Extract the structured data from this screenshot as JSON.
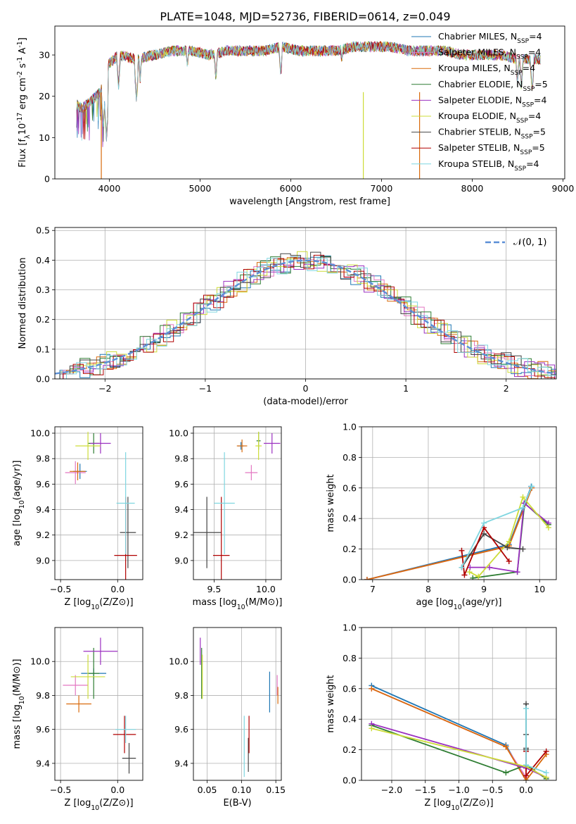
{
  "title": "PLATE=1048, MJD=52736, FIBERID=0614, z=0.049",
  "colors": {
    "chabrier_miles": "#1f77b4",
    "salpeter_miles": "#e377c2",
    "kroupa_miles": "#d96a0b",
    "chabrier_elodie": "#2e7d32",
    "salpeter_elodie": "#9b30c0",
    "kroupa_elodie": "#cddc39",
    "chabrier_stelib": "#444444",
    "salpeter_stelib": "#b00000",
    "kroupa_stelib": "#7fd6e0",
    "normal": "#5b8fd6"
  },
  "chart_data": [
    {
      "id": "spectrum",
      "type": "line",
      "xlabel": "wavelength [Angstrom, rest frame]",
      "ylabel": "Flux [f_λ10^{-17} erg cm^{-2} s^{-1} A^{-1}]",
      "xlim": [
        3400,
        9020
      ],
      "ylim": [
        0,
        37
      ],
      "xticks": [
        4000,
        5000,
        6000,
        7000,
        8000,
        9000
      ],
      "yticks": [
        0,
        10,
        20,
        30
      ],
      "legend_position": "right",
      "series": [
        {
          "name": "Chabrier MILES, N_SSP=4",
          "color": "chabrier_miles"
        },
        {
          "name": "Salpeter MILES, N_SSP=4",
          "color": "salpeter_miles"
        },
        {
          "name": "Kroupa MILES, N_SSP=4",
          "color": "kroupa_miles"
        },
        {
          "name": "Chabrier ELODIE, N_SSP=5",
          "color": "chabrier_elodie"
        },
        {
          "name": "Salpeter ELODIE, N_SSP=4",
          "color": "salpeter_elodie"
        },
        {
          "name": "Kroupa ELODIE, N_SSP=4",
          "color": "kroupa_elodie"
        },
        {
          "name": "Chabrier STELIB, N_SSP=5",
          "color": "chabrier_stelib"
        },
        {
          "name": "Salpeter STELIB, N_SSP=5",
          "color": "salpeter_stelib"
        },
        {
          "name": "Kroupa STELIB, N_SSP=4",
          "color": "kroupa_stelib"
        }
      ],
      "continuum": [
        [
          3640,
          18
        ],
        [
          3700,
          17
        ],
        [
          3800,
          19
        ],
        [
          3900,
          21
        ],
        [
          3950,
          24
        ],
        [
          4000,
          28
        ],
        [
          4100,
          30
        ],
        [
          4300,
          29
        ],
        [
          4500,
          30
        ],
        [
          4700,
          31
        ],
        [
          4900,
          31
        ],
        [
          5100,
          30
        ],
        [
          5300,
          31
        ],
        [
          5500,
          31
        ],
        [
          5700,
          31
        ],
        [
          5900,
          32
        ],
        [
          6100,
          31
        ],
        [
          6300,
          31
        ],
        [
          6500,
          31
        ],
        [
          6700,
          32
        ],
        [
          6900,
          32
        ],
        [
          7100,
          32
        ],
        [
          7300,
          31
        ],
        [
          7500,
          31
        ],
        [
          7700,
          31
        ],
        [
          7900,
          30
        ],
        [
          8100,
          30
        ],
        [
          8300,
          30
        ],
        [
          8500,
          29
        ],
        [
          8700,
          29
        ]
      ],
      "absorption_lines": [
        [
          3934,
          13
        ],
        [
          3969,
          10
        ],
        [
          4101,
          22
        ],
        [
          4300,
          19
        ],
        [
          4340,
          24
        ],
        [
          4861,
          27
        ],
        [
          5175,
          24
        ],
        [
          5890,
          25
        ],
        [
          6563,
          28
        ],
        [
          8498,
          23
        ],
        [
          8542,
          22
        ],
        [
          8662,
          21
        ]
      ]
    },
    {
      "id": "residuals",
      "type": "line",
      "xlabel": "(data-model)/error",
      "ylabel": "Normed distribution",
      "xlim": [
        -2.5,
        2.5
      ],
      "ylim": [
        0,
        0.51
      ],
      "xticks": [
        -2,
        -1,
        0,
        1,
        2
      ],
      "yticks": [
        0.0,
        0.1,
        0.2,
        0.3,
        0.4,
        0.5
      ],
      "grid": true,
      "legend_position": "top-right",
      "normal_label": "N(0,1)"
    },
    {
      "id": "age_vs_Z",
      "type": "scatter",
      "xlabel": "Z [log10(Z/Z⊙)]",
      "ylabel": "age  [log10(age/yr)]",
      "xlim": [
        -0.55,
        0.22
      ],
      "ylim": [
        8.85,
        10.05
      ],
      "xticks": [
        -0.5,
        0.0
      ],
      "yticks": [
        9.0,
        9.2,
        9.4,
        9.6,
        9.8,
        10.0
      ],
      "grid": true,
      "points": [
        {
          "c": "chabrier_miles",
          "x": -0.33,
          "y": 9.7,
          "xe": 0.06,
          "ye": 0.06
        },
        {
          "c": "salpeter_miles",
          "x": -0.37,
          "y": 9.69,
          "xe": 0.09,
          "ye": 0.09
        },
        {
          "c": "kroupa_miles",
          "x": -0.35,
          "y": 9.7,
          "xe": 0.07,
          "ye": 0.07
        },
        {
          "c": "chabrier_elodie",
          "x": -0.21,
          "y": 9.92,
          "xe": 0.05,
          "ye": 0.08
        },
        {
          "c": "salpeter_elodie",
          "x": -0.15,
          "y": 9.92,
          "xe": 0.09,
          "ye": 0.08
        },
        {
          "c": "kroupa_elodie",
          "x": -0.26,
          "y": 9.9,
          "xe": 0.11,
          "ye": 0.11
        },
        {
          "c": "chabrier_stelib",
          "x": 0.09,
          "y": 9.22,
          "xe": 0.07,
          "ye": 0.28
        },
        {
          "c": "salpeter_stelib",
          "x": 0.07,
          "y": 9.04,
          "xe": 0.1,
          "ye": 0.46
        },
        {
          "c": "kroupa_stelib",
          "x": 0.07,
          "y": 9.45,
          "xe": 0.08,
          "ye": 0.4
        }
      ]
    },
    {
      "id": "age_vs_mass",
      "type": "scatter",
      "xlabel": "mass [log10(M/M⊙)]",
      "ylabel": "",
      "xlim": [
        9.3,
        10.15
      ],
      "ylim": [
        8.85,
        10.05
      ],
      "xticks": [
        9.5,
        10.0
      ],
      "yticks": [
        9.0,
        9.2,
        9.4,
        9.6,
        9.8,
        10.0
      ],
      "grid": true,
      "points": [
        {
          "c": "chabrier_miles",
          "x": 9.76,
          "y": 9.9,
          "xe": 0.03,
          "ye": 0.03
        },
        {
          "c": "salpeter_miles",
          "x": 9.86,
          "y": 9.69,
          "xe": 0.06,
          "ye": 0.06
        },
        {
          "c": "kroupa_miles",
          "x": 9.77,
          "y": 9.9,
          "xe": 0.05,
          "ye": 0.05
        },
        {
          "c": "chabrier_elodie",
          "x": 9.93,
          "y": 9.94,
          "xe": 0.02,
          "ye": 0.07
        },
        {
          "c": "salpeter_elodie",
          "x": 10.06,
          "y": 9.92,
          "xe": 0.08,
          "ye": 0.08
        },
        {
          "c": "kroupa_elodie",
          "x": 9.93,
          "y": 9.9,
          "xe": 0.03,
          "ye": 0.11
        },
        {
          "c": "chabrier_stelib",
          "x": 9.43,
          "y": 9.22,
          "xe": 0.14,
          "ye": 0.28
        },
        {
          "c": "salpeter_stelib",
          "x": 9.57,
          "y": 9.04,
          "xe": 0.08,
          "ye": 0.46
        },
        {
          "c": "kroupa_stelib",
          "x": 9.6,
          "y": 9.45,
          "xe": 0.1,
          "ye": 0.4
        }
      ]
    },
    {
      "id": "mass_weight_vs_age",
      "type": "line",
      "xlabel": "age  [log10(age/yr)]",
      "ylabel": "mass weight",
      "xlim": [
        6.8,
        10.3
      ],
      "ylim": [
        0.0,
        1.0
      ],
      "xticks": [
        7,
        8,
        9,
        10
      ],
      "yticks": [
        0.0,
        0.2,
        0.4,
        0.6,
        0.8,
        1.0
      ],
      "grid": true,
      "series": [
        {
          "c": "chabrier_miles",
          "x": [
            6.9,
            9.45,
            9.85
          ],
          "y": [
            0.0,
            0.23,
            0.61
          ]
        },
        {
          "c": "salpeter_miles",
          "x": [
            6.9,
            9.45,
            9.86
          ],
          "y": [
            0.0,
            0.22,
            0.6
          ]
        },
        {
          "c": "kroupa_miles",
          "x": [
            6.9,
            9.45,
            9.86
          ],
          "y": [
            0.0,
            0.22,
            0.6
          ]
        },
        {
          "c": "chabrier_elodie",
          "x": [
            8.8,
            9.6,
            9.73,
            10.16
          ],
          "y": [
            0.01,
            0.05,
            0.5,
            0.36
          ]
        },
        {
          "c": "salpeter_elodie",
          "x": [
            8.75,
            9.1,
            9.6,
            9.72,
            10.16
          ],
          "y": [
            0.08,
            0.08,
            0.05,
            0.5,
            0.37
          ]
        },
        {
          "c": "kroupa_elodie",
          "x": [
            8.74,
            8.9,
            9.45,
            9.7,
            10.16
          ],
          "y": [
            0.05,
            0.02,
            0.25,
            0.54,
            0.34
          ]
        },
        {
          "c": "chabrier_stelib",
          "x": [
            8.6,
            9.0,
            9.42,
            9.7
          ],
          "y": [
            0.08,
            0.3,
            0.21,
            0.2
          ]
        },
        {
          "c": "salpeter_stelib",
          "x": [
            8.6,
            8.65,
            9.0,
            9.45
          ],
          "y": [
            0.19,
            0.03,
            0.34,
            0.12
          ]
        },
        {
          "c": "kroupa_stelib",
          "x": [
            8.6,
            9.0,
            9.7,
            9.86
          ],
          "y": [
            0.08,
            0.37,
            0.47,
            0.61
          ]
        }
      ]
    },
    {
      "id": "mass_vs_Z",
      "type": "scatter",
      "xlabel": "Z [log10(Z/Z⊙)]",
      "ylabel": "mass [log10(M/M⊙)]",
      "xlim": [
        -0.55,
        0.22
      ],
      "ylim": [
        9.3,
        10.2
      ],
      "xticks": [
        -0.5,
        0.0
      ],
      "yticks": [
        9.4,
        9.6,
        9.8,
        10.0
      ],
      "grid": true,
      "points": [
        {
          "c": "chabrier_miles",
          "x": -0.21,
          "y": 9.93,
          "xe": 0.11,
          "ye": 0.03
        },
        {
          "c": "salpeter_miles",
          "x": -0.37,
          "y": 9.86,
          "xe": 0.11,
          "ye": 0.06
        },
        {
          "c": "kroupa_miles",
          "x": -0.34,
          "y": 9.75,
          "xe": 0.11,
          "ye": 0.05
        },
        {
          "c": "chabrier_elodie",
          "x": -0.21,
          "y": 9.93,
          "xe": 0.05,
          "ye": 0.15
        },
        {
          "c": "salpeter_elodie",
          "x": -0.15,
          "y": 10.06,
          "xe": 0.15,
          "ye": 0.08
        },
        {
          "c": "kroupa_elodie",
          "x": -0.26,
          "y": 9.91,
          "xe": 0.15,
          "ye": 0.13
        },
        {
          "c": "chabrier_stelib",
          "x": 0.1,
          "y": 9.43,
          "xe": 0.06,
          "ye": 0.09
        },
        {
          "c": "salpeter_stelib",
          "x": 0.06,
          "y": 9.57,
          "xe": 0.1,
          "ye": 0.11
        },
        {
          "c": "kroupa_stelib",
          "x": 0.07,
          "y": 9.6,
          "xe": 0.09,
          "ye": 0.08
        }
      ]
    },
    {
      "id": "mass_vs_ebv",
      "type": "scatter",
      "xlabel": "E(B-V)",
      "ylabel": "",
      "xlim": [
        0.03,
        0.158
      ],
      "ylim": [
        9.3,
        10.2
      ],
      "xticks": [
        0.05,
        0.1,
        0.15
      ],
      "yticks": [
        9.4,
        9.6,
        9.8,
        10.0
      ],
      "grid": true,
      "points": [
        {
          "c": "chabrier_miles",
          "x": 0.141,
          "y": 9.82,
          "xe": 0,
          "ye": 0.12
        },
        {
          "c": "salpeter_miles",
          "x": 0.152,
          "y": 9.86,
          "xe": 0,
          "ye": 0.06
        },
        {
          "c": "kroupa_miles",
          "x": 0.153,
          "y": 9.8,
          "xe": 0,
          "ye": 0.05
        },
        {
          "c": "chabrier_elodie",
          "x": 0.042,
          "y": 9.93,
          "xe": 0,
          "ye": 0.15
        },
        {
          "c": "salpeter_elodie",
          "x": 0.04,
          "y": 10.06,
          "xe": 0,
          "ye": 0.08
        },
        {
          "c": "kroupa_elodie",
          "x": 0.043,
          "y": 9.91,
          "xe": 0,
          "ye": 0.13
        },
        {
          "c": "chabrier_stelib",
          "x": 0.11,
          "y": 9.45,
          "xe": 0,
          "ye": 0.1
        },
        {
          "c": "salpeter_stelib",
          "x": 0.111,
          "y": 9.57,
          "xe": 0,
          "ye": 0.11
        },
        {
          "c": "kroupa_stelib",
          "x": 0.104,
          "y": 9.5,
          "xe": 0,
          "ye": 0.18
        }
      ]
    },
    {
      "id": "mass_weight_vs_Z",
      "type": "line",
      "xlabel": "Z [log10(Z/Z⊙)]",
      "ylabel": "mass weight",
      "xlim": [
        -2.45,
        0.45
      ],
      "ylim": [
        0.0,
        1.0
      ],
      "xticks": [
        -2.0,
        -1.5,
        -1.0,
        -0.5,
        0.0
      ],
      "yticks": [
        0.0,
        0.2,
        0.4,
        0.6,
        0.8,
        1.0
      ],
      "grid": true,
      "series": [
        {
          "c": "chabrier_miles",
          "x": [
            -2.3,
            -0.3,
            0.0
          ],
          "y": [
            0.62,
            0.23,
            0.0
          ]
        },
        {
          "c": "salpeter_miles",
          "x": [
            -2.3,
            -0.3,
            0.0
          ],
          "y": [
            0.6,
            0.22,
            0.02
          ]
        },
        {
          "c": "kroupa_miles",
          "x": [
            -2.3,
            -0.3,
            0.0,
            0.3
          ],
          "y": [
            0.6,
            0.22,
            0.0,
            0.17
          ]
        },
        {
          "c": "chabrier_elodie",
          "x": [
            -2.3,
            -0.3,
            0.0,
            0.3
          ],
          "y": [
            0.36,
            0.05,
            0.1,
            0.01
          ]
        },
        {
          "c": "salpeter_elodie",
          "x": [
            -2.3,
            0.0,
            0.3
          ],
          "y": [
            0.37,
            0.08,
            0.02
          ]
        },
        {
          "c": "kroupa_elodie",
          "x": [
            -2.3,
            0.0,
            0.3
          ],
          "y": [
            0.34,
            0.09,
            0.02
          ]
        },
        {
          "c": "chabrier_stelib",
          "x": [
            0.0,
            0.0,
            0.0,
            0.0
          ],
          "y": [
            0.5,
            0.3,
            0.21,
            0.2
          ]
        },
        {
          "c": "salpeter_stelib",
          "x": [
            0.0,
            0.0,
            0.3
          ],
          "y": [
            0.19,
            0.03,
            0.19
          ]
        },
        {
          "c": "kroupa_stelib",
          "x": [
            0.0,
            0.0,
            0.3
          ],
          "y": [
            0.47,
            0.1,
            0.05
          ]
        }
      ]
    }
  ]
}
